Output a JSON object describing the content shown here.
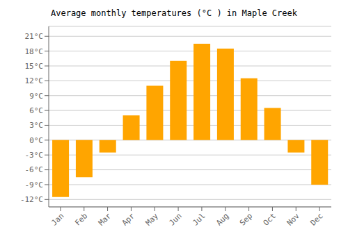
{
  "chart_data": {
    "type": "bar",
    "title": "Average monthly temperatures (°C ) in Maple Creek",
    "categories": [
      "Jan",
      "Feb",
      "Mar",
      "Apr",
      "May",
      "Jun",
      "Jul",
      "Aug",
      "Sep",
      "Oct",
      "Nov",
      "Dec"
    ],
    "values": [
      -11.5,
      -7.5,
      -2.5,
      5.0,
      11.0,
      16.0,
      19.5,
      18.5,
      12.5,
      6.5,
      -2.5,
      -9.0
    ],
    "color": "#FFA500",
    "ylim": [
      -13.5,
      23
    ],
    "yticks": [
      {
        "value": -12,
        "label": "-12°C"
      },
      {
        "value": -9,
        "label": "-9°C"
      },
      {
        "value": -6,
        "label": "-6°C"
      },
      {
        "value": -3,
        "label": "-3°C"
      },
      {
        "value": 0,
        "label": "0°C"
      },
      {
        "value": 3,
        "label": "3°C"
      },
      {
        "value": 6,
        "label": "6°C"
      },
      {
        "value": 9,
        "label": "9°C"
      },
      {
        "value": 12,
        "label": "12°C"
      },
      {
        "value": 15,
        "label": "15°C"
      },
      {
        "value": 18,
        "label": "18°C"
      },
      {
        "value": 21,
        "label": "21°C"
      }
    ],
    "grid": true
  }
}
